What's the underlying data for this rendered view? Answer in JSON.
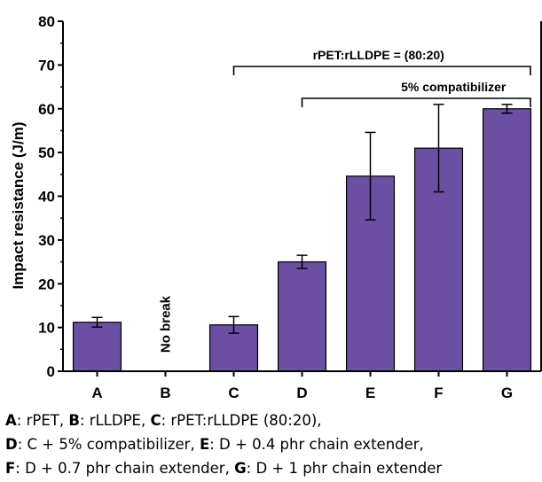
{
  "chart_data": {
    "type": "bar",
    "categories": [
      "A",
      "B",
      "C",
      "D",
      "E",
      "F",
      "G"
    ],
    "values": [
      11.2,
      null,
      10.6,
      25.0,
      44.6,
      51.0,
      60.0
    ],
    "errors": [
      1.1,
      null,
      1.9,
      1.5,
      10.0,
      10.0,
      1.0
    ],
    "ylabel": "Impact resistance (J/m)",
    "ylim": [
      0,
      80
    ],
    "yticks": [
      0,
      10,
      20,
      30,
      40,
      50,
      60,
      70,
      80
    ],
    "bar_color": "#6a4fa3",
    "annotations": [
      {
        "text": "No break",
        "category": "B"
      },
      {
        "text": "rPET:rLLDPE = (80:20)",
        "from": "C",
        "to": "G"
      },
      {
        "text": "5% compatibilizer",
        "from": "D",
        "to": "G"
      }
    ],
    "legend_caption": [
      [
        {
          "key": "A",
          "desc": ": rPET, "
        },
        {
          "key": "B",
          "desc": ": rLLDPE, "
        },
        {
          "key": "C",
          "desc": ": rPET:rLLDPE (80:20),"
        }
      ],
      [
        {
          "key": "D",
          "desc": ": C + 5% compatibilizer, "
        },
        {
          "key": "E",
          "desc": ": D + 0.4 phr chain extender,"
        }
      ],
      [
        {
          "key": "F",
          "desc": ": D + 0.7 phr chain extender, "
        },
        {
          "key": "G",
          "desc": ": D + 1 phr chain extender"
        }
      ]
    ]
  }
}
